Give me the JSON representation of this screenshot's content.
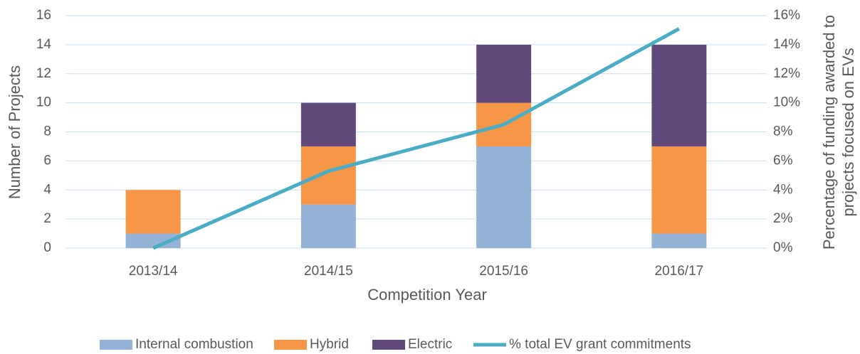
{
  "chart_data": {
    "type": "bar",
    "stacked": true,
    "categories": [
      "2013/14",
      "2014/15",
      "2015/16",
      "2016/17"
    ],
    "series": [
      {
        "name": "Internal combustion",
        "color": "#95b3d7",
        "values": [
          1,
          3,
          7,
          1
        ]
      },
      {
        "name": "Hybrid",
        "color": "#f79646",
        "values": [
          3,
          4,
          3,
          6
        ]
      },
      {
        "name": "Electric",
        "color": "#604a7b",
        "values": [
          0,
          3,
          4,
          7
        ]
      },
      {
        "name": "% total EV grant commitments",
        "color": "#4bacc6",
        "type": "line",
        "axis": "y2",
        "values": [
          0,
          5.3,
          8.5,
          15.1
        ]
      }
    ],
    "ylim": [
      0,
      16
    ],
    "yticks": [
      0,
      2,
      4,
      6,
      8,
      10,
      12,
      14,
      16
    ],
    "y2lim": [
      0,
      16
    ],
    "y2ticks": [
      {
        "value": 0,
        "label": "0%"
      },
      {
        "value": 2,
        "label": "2%"
      },
      {
        "value": 4,
        "label": "4%"
      },
      {
        "value": 6,
        "label": "6%"
      },
      {
        "value": 8,
        "label": "8%"
      },
      {
        "value": 10,
        "label": "10%"
      },
      {
        "value": 12,
        "label": "12%"
      },
      {
        "value": 14,
        "label": "14%"
      },
      {
        "value": 16,
        "label": "16%"
      }
    ],
    "xlabel": "Competition Year",
    "ylabel": "Number of Projects",
    "y2label": [
      "Percentage of funding awarded to",
      "projects focused on EVs"
    ],
    "grid": true,
    "legend": "bottom"
  }
}
